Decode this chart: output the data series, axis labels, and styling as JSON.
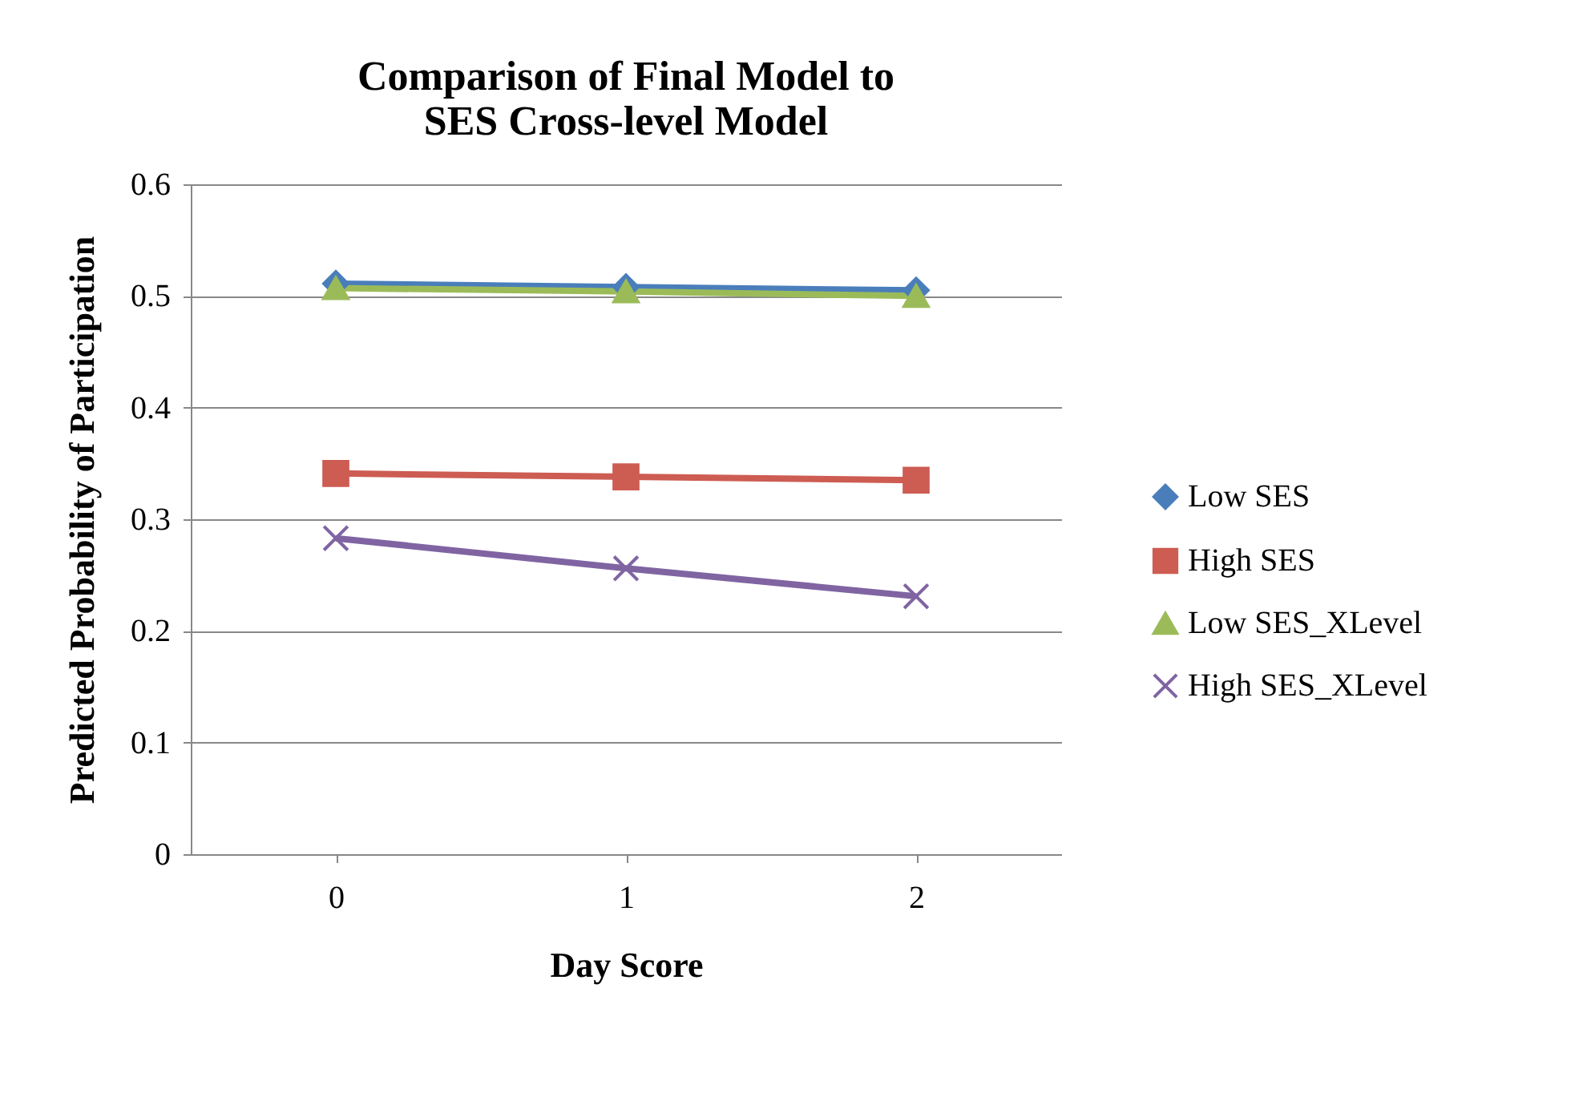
{
  "chart_data": {
    "type": "line",
    "title": [
      "Comparison of Final Model to",
      "SES Cross-level Model"
    ],
    "xlabel": "Day Score",
    "ylabel": "Predicted Probability of Participation",
    "categories": [
      "0",
      "1",
      "2"
    ],
    "series": [
      {
        "name": "Low SES",
        "color": "#4a7ebb",
        "marker": "diamond",
        "values": [
          0.511,
          0.508,
          0.505
        ]
      },
      {
        "name": "High SES",
        "color": "#cd5c52",
        "marker": "square",
        "values": [
          0.341,
          0.338,
          0.335
        ]
      },
      {
        "name": "Low SES_XLevel",
        "color": "#9bbb59",
        "marker": "triangle",
        "values": [
          0.507,
          0.504,
          0.5
        ]
      },
      {
        "name": "High SES_XLevel",
        "color": "#8064a2",
        "marker": "cross",
        "values": [
          0.283,
          0.256,
          0.231
        ]
      }
    ],
    "ylim": [
      0,
      0.6
    ],
    "yticks": [
      0,
      0.1,
      0.2,
      0.3,
      0.4,
      0.5,
      0.6
    ],
    "grid": "y",
    "legend": "right"
  }
}
